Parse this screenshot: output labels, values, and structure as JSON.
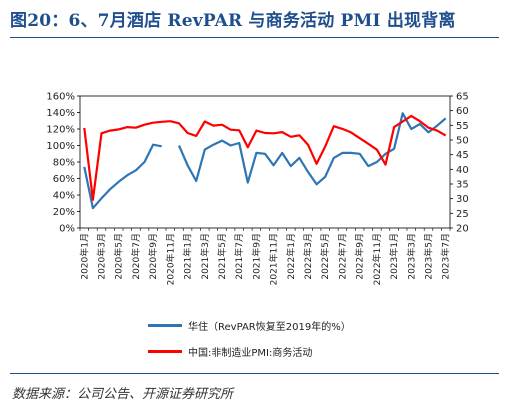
{
  "header": {
    "title": "图20：6、7月酒店 RevPAR 与商务活动 PMI 出现背离"
  },
  "footer": {
    "source": "数据来源：公司公告、开源证券研究所"
  },
  "colors": {
    "series1": "#2e75b6",
    "series2": "#ff0000",
    "title": "#1f4e8c"
  },
  "chart_data": {
    "type": "line",
    "x": [
      "2020年1月",
      "2020年2月",
      "2020年3月",
      "2020年4月",
      "2020年5月",
      "2020年6月",
      "2020年7月",
      "2020年8月",
      "2020年9月",
      "2020年10月",
      "2020年11月",
      "2020年12月",
      "2021年1月",
      "2021年2月",
      "2021年3月",
      "2021年4月",
      "2021年5月",
      "2021年6月",
      "2021年7月",
      "2021年8月",
      "2021年9月",
      "2021年10月",
      "2021年11月",
      "2021年12月",
      "2022年1月",
      "2022年2月",
      "2022年3月",
      "2022年4月",
      "2022年5月",
      "2022年6月",
      "2022年7月",
      "2022年8月",
      "2022年9月",
      "2022年10月",
      "2022年11月",
      "2022年12月",
      "2023年1月",
      "2023年2月",
      "2023年3月",
      "2023年4月",
      "2023年5月",
      "2023年6月",
      "2023年7月"
    ],
    "x_tick_labels": [
      "2020年1月",
      "2020年3月",
      "2020年5月",
      "2020年7月",
      "2020年9月",
      "2020年11月",
      "2021年1月",
      "2021年3月",
      "2021年5月",
      "2021年7月",
      "2021年9月",
      "2021年11月",
      "2022年1月",
      "2022年3月",
      "2022年5月",
      "2022年7月",
      "2022年9月",
      "2022年11月",
      "2023年1月",
      "2023年3月",
      "2023年5月",
      "2023年7月"
    ],
    "y_left": {
      "ticks": [
        "0%",
        "20%",
        "40%",
        "60%",
        "80%",
        "100%",
        "120%",
        "140%",
        "160%"
      ],
      "range": [
        0,
        160
      ]
    },
    "y_right": {
      "ticks": [
        "20",
        "25",
        "30",
        "35",
        "40",
        "45",
        "50",
        "55",
        "60",
        "65"
      ],
      "range": [
        20,
        65
      ]
    },
    "series": [
      {
        "name": "华住（RevPAR恢复至2019年的%）",
        "axis": "left",
        "values": [
          74,
          24,
          36,
          47,
          56,
          64,
          70,
          80,
          101,
          99,
          null,
          100,
          76,
          57,
          95,
          101,
          106,
          100,
          103,
          55,
          91,
          90,
          76,
          91,
          75,
          85,
          68,
          53,
          62,
          85,
          91,
          91,
          90,
          75,
          80,
          90,
          96,
          139,
          120,
          126,
          116,
          124,
          133
        ]
      },
      {
        "name": "中国:非制造业PMI:商务活动",
        "axis": "right",
        "values": [
          54.1,
          29.6,
          52.3,
          53.2,
          53.6,
          54.4,
          54.2,
          55.2,
          55.9,
          56.2,
          56.4,
          55.7,
          52.4,
          51.4,
          56.3,
          54.9,
          55.2,
          53.5,
          53.3,
          47.5,
          53.2,
          52.4,
          52.3,
          52.7,
          51.1,
          51.6,
          48.4,
          41.9,
          47.8,
          54.7,
          53.8,
          52.6,
          50.6,
          48.7,
          46.7,
          41.6,
          54.4,
          56.3,
          58.2,
          56.4,
          54.2,
          53.2,
          51.5
        ]
      }
    ],
    "legend_position": "bottom"
  }
}
